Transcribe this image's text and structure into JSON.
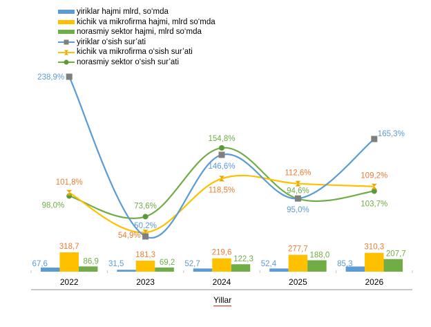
{
  "chart_data": {
    "type": "bar+line",
    "title": "",
    "xlabel": "Yillar",
    "ylabel": "",
    "categories": [
      "2022",
      "2023",
      "2024",
      "2025",
      "2026"
    ],
    "bar_series": [
      {
        "name": "yiriklar hajmi mlrd, so‘mda",
        "color": "#5B9BD5",
        "label_color": "#5B9BD5",
        "values": [
          67.6,
          31.5,
          52.7,
          52.4,
          85.3
        ],
        "labels": [
          "67,6",
          "31,5",
          "52,7",
          "52,4",
          "85,3"
        ]
      },
      {
        "name": "kichik va mikrofirma hajmi, mlrd so‘mda",
        "color": "#FFC000",
        "label_color": "#ED7D31",
        "values": [
          318.7,
          181.3,
          219.6,
          277.7,
          310.3
        ],
        "labels": [
          "318,7",
          "181,3",
          "219,6",
          "277,7",
          "310,3"
        ]
      },
      {
        "name": "norasmiy sektor hajmi, mlrd so‘mda",
        "color": "#70AD47",
        "label_color": "#70AD47",
        "values": [
          86.9,
          69.2,
          122.3,
          188.0,
          207.7
        ],
        "labels": [
          "86,9",
          "69,2",
          "122,3",
          "188,0",
          "207,7"
        ]
      }
    ],
    "line_series": [
      {
        "name": "yiriklar o‘sish sur’ati",
        "color": "#5B9BD5",
        "marker": "square",
        "marker_color": "#7F7F7F",
        "label_color": "#5B9BD5",
        "values": [
          238.9,
          50.2,
          146.6,
          95.0,
          165.3
        ],
        "labels": [
          "238,9%",
          "50,2%",
          "146,6%",
          "95,0%",
          "165,3%"
        ]
      },
      {
        "name": "kichik va mikrofirma o‘sish sur’ati",
        "color": "#FFC000",
        "marker": "hourglass",
        "marker_color": "#E6A800",
        "label_color": "#ED7D31",
        "values": [
          101.8,
          54.9,
          118.5,
          112.6,
          109.2
        ],
        "labels": [
          "101,8%",
          "54,9%",
          "118,5%",
          "112,6%",
          "109,2%"
        ]
      },
      {
        "name": "norasmiy sektor o‘sish sur’ati",
        "color": "#70AD47",
        "marker": "circle",
        "marker_color": "#5A9A3A",
        "label_color": "#70AD47",
        "values": [
          98.0,
          73.6,
          154.8,
          94.6,
          103.7
        ],
        "labels": [
          "98,0%",
          "73,6%",
          "154,8%",
          "94,6%",
          "103,7%"
        ]
      }
    ],
    "legend_position": "top-left",
    "grid": false,
    "axis_line_color": "#A6A6A6"
  }
}
